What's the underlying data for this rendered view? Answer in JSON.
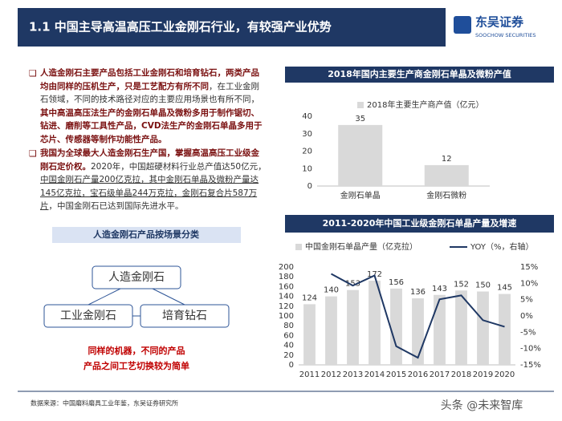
{
  "header": {
    "title": "1.1 中国主导高温高压工业金刚石行业，有较强产业优势",
    "logo": "东吴证券",
    "logo_en": "SOOCHOW SECURITIES"
  },
  "bullets": [
    [
      "人造金刚石主要产品包括工业金刚石和培育钻石，两类产品均由同样的压机生产，只是工艺配方有所不同",
      "，在工业金刚石领域，不同的技术路径对应的主要应用场景也有所不同，",
      "其中高温高压法生产的金刚石单晶及微粉多用于制作锯切、钻进、磨削等工具性产品，CVD法生产的金刚石单晶多用于芯片、传感器等制作功能性产品。"
    ],
    [
      "我国为全球最大人造金刚石生产国，掌握高温高压工业级金刚石定价权。",
      "2020年，中国超硬材料行业总产值达50亿元，",
      "中国金刚石产量200亿克拉，其中金刚石单晶及微粉产量达145亿克拉，宝石级单晶244万克拉，金刚石复合片587万片",
      "，中国金刚石已达到国际先进水平。"
    ]
  ],
  "diagram": {
    "title": "人造金刚石产品按场景分类",
    "nodes": [
      "人造金刚石",
      "工业金刚石",
      "培育钻石"
    ],
    "notes": [
      "同样的机器，不同的产品",
      "产品之间工艺切换较为简单"
    ]
  },
  "source": "数据来源：中国磨料磨具工业年鉴，东吴证券研究所",
  "watermark": "头条 @未来智库",
  "chart_data": [
    {
      "type": "bar",
      "title": "2018年国内主要生产商金刚石单晶及微粉产值",
      "categories": [
        "金刚石单晶",
        "金刚石微粉"
      ],
      "series": [
        {
          "name": "2018年主要生产商产值（亿元）",
          "color": "#d9d9d9",
          "values": [
            35,
            12
          ]
        }
      ],
      "ylim": [
        0,
        40
      ],
      "yticks": [
        0,
        10,
        20,
        30,
        40
      ]
    },
    {
      "type": "combo",
      "title": "2011-2020年中国工业级金刚石单晶产量及增速",
      "categories": [
        "2011",
        "2012",
        "2013",
        "2014",
        "2015",
        "2016",
        "2017",
        "2018",
        "2019",
        "2020"
      ],
      "series": [
        {
          "name": "中国金刚石单晶产量（亿克拉）",
          "kind": "bar",
          "color": "#d9d9d9",
          "values": [
            124,
            140,
            153,
            172,
            156,
            136,
            143,
            152,
            150,
            145
          ]
        },
        {
          "name": "YOY（%，右轴）",
          "kind": "line",
          "axis": "y2",
          "color": "#1f3864",
          "values": [
            null,
            12.9,
            9.3,
            12.4,
            -9.3,
            -12.8,
            5.1,
            6.3,
            -1.3,
            -3.3
          ]
        }
      ],
      "ylim": [
        0,
        200
      ],
      "yticks": [
        0,
        20,
        40,
        60,
        80,
        100,
        120,
        140,
        160,
        180,
        200
      ],
      "y2lim": [
        -15,
        15
      ],
      "y2ticks": [
        {
          "value": -15,
          "label": "-15%"
        },
        {
          "value": -10,
          "label": "-10%"
        },
        {
          "value": -5,
          "label": "-5%"
        },
        {
          "value": 0,
          "label": "0%"
        },
        {
          "value": 5,
          "label": "5%"
        },
        {
          "value": 10,
          "label": "10%"
        },
        {
          "value": 15,
          "label": "15%"
        }
      ]
    }
  ]
}
